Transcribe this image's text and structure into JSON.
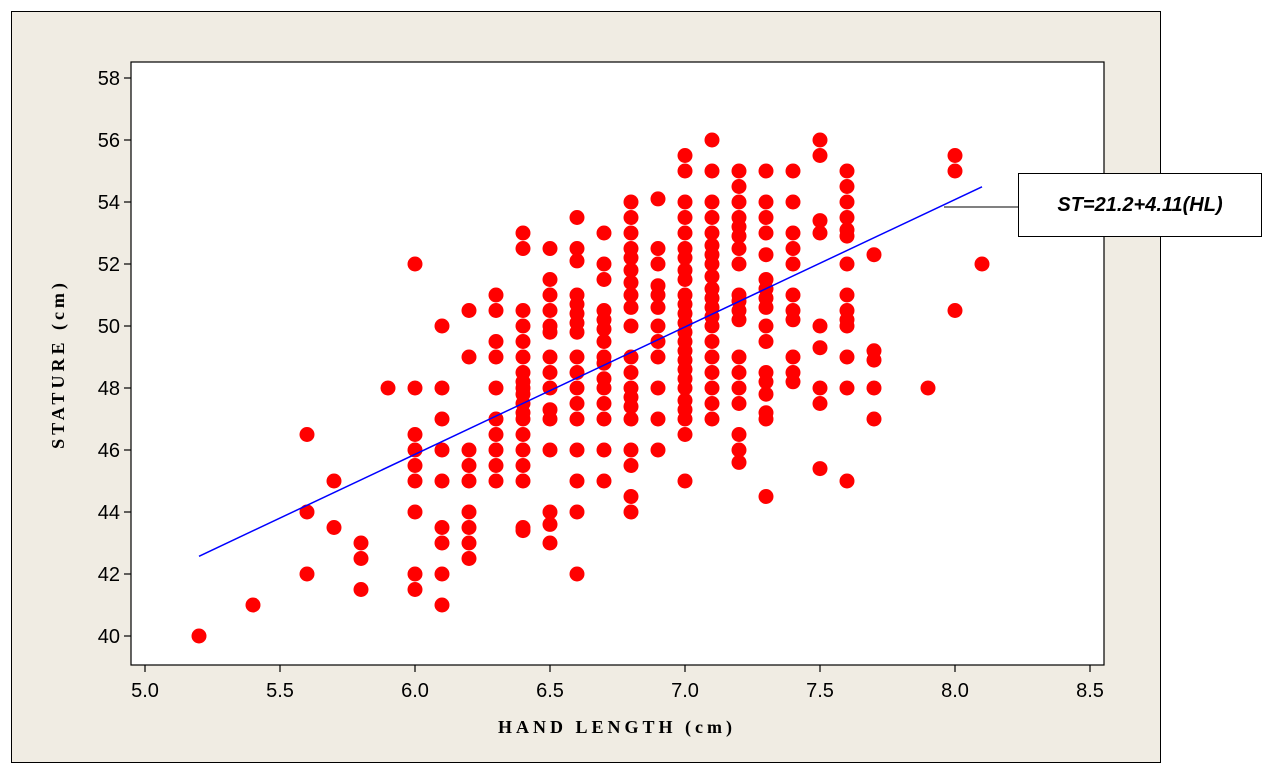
{
  "chart_data": {
    "type": "scatter",
    "title": "",
    "xlabel": "HAND LENGTH (cm)",
    "ylabel": "STATURE (cm)",
    "xlim": [
      5.0,
      8.5
    ],
    "ylim": [
      40,
      58
    ],
    "x_ticks": [
      "5.0",
      "5.5",
      "6.0",
      "6.5",
      "7.0",
      "7.5",
      "8.0",
      "8.5"
    ],
    "y_ticks": [
      "40",
      "42",
      "44",
      "46",
      "48",
      "50",
      "52",
      "54",
      "56",
      "58"
    ],
    "grid": false,
    "legend": "none",
    "point_color": "#ff0000",
    "line_color": "#0000ff",
    "frame_background": "#f0ece3",
    "annotation": "ST=21.2+4.11(HL)",
    "regression": {
      "intercept": 21.2,
      "slope": 4.11,
      "x_range": [
        5.2,
        8.1
      ]
    },
    "points": [
      [
        5.2,
        40
      ],
      [
        5.4,
        41
      ],
      [
        5.6,
        46.5
      ],
      [
        5.6,
        44
      ],
      [
        5.6,
        42
      ],
      [
        5.7,
        45
      ],
      [
        5.7,
        43.5
      ],
      [
        5.8,
        43
      ],
      [
        5.8,
        42.5
      ],
      [
        5.8,
        41.5
      ],
      [
        5.9,
        48
      ],
      [
        6.0,
        52
      ],
      [
        6.0,
        48
      ],
      [
        6.0,
        46.5
      ],
      [
        6.0,
        46
      ],
      [
        6.0,
        45.5
      ],
      [
        6.0,
        45
      ],
      [
        6.0,
        44
      ],
      [
        6.0,
        42
      ],
      [
        6.0,
        41.5
      ],
      [
        6.1,
        50
      ],
      [
        6.1,
        48
      ],
      [
        6.1,
        47
      ],
      [
        6.1,
        46
      ],
      [
        6.1,
        45
      ],
      [
        6.1,
        43.5
      ],
      [
        6.1,
        43
      ],
      [
        6.1,
        42
      ],
      [
        6.1,
        41
      ],
      [
        6.2,
        50.5
      ],
      [
        6.2,
        49
      ],
      [
        6.2,
        46
      ],
      [
        6.2,
        45.5
      ],
      [
        6.2,
        45
      ],
      [
        6.2,
        44
      ],
      [
        6.2,
        43.5
      ],
      [
        6.2,
        43
      ],
      [
        6.2,
        42.5
      ],
      [
        6.3,
        51
      ],
      [
        6.3,
        50.5
      ],
      [
        6.3,
        49.5
      ],
      [
        6.3,
        49
      ],
      [
        6.3,
        48
      ],
      [
        6.3,
        47
      ],
      [
        6.3,
        46.5
      ],
      [
        6.3,
        46
      ],
      [
        6.3,
        45.5
      ],
      [
        6.3,
        45
      ],
      [
        6.4,
        53
      ],
      [
        6.4,
        52.5
      ],
      [
        6.4,
        50.5
      ],
      [
        6.4,
        50
      ],
      [
        6.4,
        49.5
      ],
      [
        6.4,
        49
      ],
      [
        6.4,
        48.5
      ],
      [
        6.4,
        48.2
      ],
      [
        6.4,
        48
      ],
      [
        6.4,
        47.8
      ],
      [
        6.4,
        47.5
      ],
      [
        6.4,
        47.2
      ],
      [
        6.4,
        47
      ],
      [
        6.4,
        46.5
      ],
      [
        6.4,
        46
      ],
      [
        6.4,
        45.5
      ],
      [
        6.4,
        45
      ],
      [
        6.4,
        43.5
      ],
      [
        6.4,
        43.4
      ],
      [
        6.5,
        52.5
      ],
      [
        6.5,
        51.5
      ],
      [
        6.5,
        51
      ],
      [
        6.5,
        50.5
      ],
      [
        6.5,
        50
      ],
      [
        6.5,
        49.8
      ],
      [
        6.5,
        49
      ],
      [
        6.5,
        48.5
      ],
      [
        6.5,
        48
      ],
      [
        6.5,
        47.3
      ],
      [
        6.5,
        47
      ],
      [
        6.5,
        46
      ],
      [
        6.5,
        44
      ],
      [
        6.5,
        43.6
      ],
      [
        6.5,
        43
      ],
      [
        6.6,
        53.5
      ],
      [
        6.6,
        52.5
      ],
      [
        6.6,
        52.1
      ],
      [
        6.6,
        51
      ],
      [
        6.6,
        50.7
      ],
      [
        6.6,
        50.4
      ],
      [
        6.6,
        50.1
      ],
      [
        6.6,
        49.8
      ],
      [
        6.6,
        49
      ],
      [
        6.6,
        48.5
      ],
      [
        6.6,
        48
      ],
      [
        6.6,
        47.5
      ],
      [
        6.6,
        47
      ],
      [
        6.6,
        46
      ],
      [
        6.6,
        45
      ],
      [
        6.6,
        44
      ],
      [
        6.6,
        42
      ],
      [
        6.7,
        53
      ],
      [
        6.7,
        52
      ],
      [
        6.7,
        51.5
      ],
      [
        6.7,
        50.5
      ],
      [
        6.7,
        50.2
      ],
      [
        6.7,
        49.9
      ],
      [
        6.7,
        49.5
      ],
      [
        6.7,
        49
      ],
      [
        6.7,
        48.8
      ],
      [
        6.7,
        48.3
      ],
      [
        6.7,
        48
      ],
      [
        6.7,
        47.5
      ],
      [
        6.7,
        47
      ],
      [
        6.7,
        46
      ],
      [
        6.7,
        45
      ],
      [
        6.8,
        54
      ],
      [
        6.8,
        53.5
      ],
      [
        6.8,
        53
      ],
      [
        6.8,
        52.5
      ],
      [
        6.8,
        52.2
      ],
      [
        6.8,
        51.8
      ],
      [
        6.8,
        51.4
      ],
      [
        6.8,
        51
      ],
      [
        6.8,
        50.6
      ],
      [
        6.8,
        50
      ],
      [
        6.8,
        49
      ],
      [
        6.8,
        48.5
      ],
      [
        6.8,
        48
      ],
      [
        6.8,
        47.7
      ],
      [
        6.8,
        47.4
      ],
      [
        6.8,
        47
      ],
      [
        6.8,
        46
      ],
      [
        6.8,
        45.5
      ],
      [
        6.8,
        44.5
      ],
      [
        6.8,
        44
      ],
      [
        6.9,
        54.1
      ],
      [
        6.9,
        52.5
      ],
      [
        6.9,
        52
      ],
      [
        6.9,
        51.3
      ],
      [
        6.9,
        51
      ],
      [
        6.9,
        50.6
      ],
      [
        6.9,
        50
      ],
      [
        6.9,
        49.5
      ],
      [
        6.9,
        49
      ],
      [
        6.9,
        48
      ],
      [
        6.9,
        47
      ],
      [
        6.9,
        46
      ],
      [
        7.0,
        55.5
      ],
      [
        7.0,
        55
      ],
      [
        7.0,
        54
      ],
      [
        7.0,
        53.5
      ],
      [
        7.0,
        53
      ],
      [
        7.0,
        52.5
      ],
      [
        7.0,
        52.2
      ],
      [
        7.0,
        51.8
      ],
      [
        7.0,
        51.5
      ],
      [
        7.0,
        51
      ],
      [
        7.0,
        50.7
      ],
      [
        7.0,
        50.4
      ],
      [
        7.0,
        50.1
      ],
      [
        7.0,
        49.8
      ],
      [
        7.0,
        49.5
      ],
      [
        7.0,
        49.2
      ],
      [
        7.0,
        48.9
      ],
      [
        7.0,
        48.6
      ],
      [
        7.0,
        48.3
      ],
      [
        7.0,
        48
      ],
      [
        7.0,
        47.6
      ],
      [
        7.0,
        47.3
      ],
      [
        7.0,
        47
      ],
      [
        7.0,
        46.5
      ],
      [
        7.0,
        45
      ],
      [
        7.1,
        56
      ],
      [
        7.1,
        55
      ],
      [
        7.1,
        54
      ],
      [
        7.1,
        53.5
      ],
      [
        7.1,
        53
      ],
      [
        7.1,
        52.6
      ],
      [
        7.1,
        52.3
      ],
      [
        7.1,
        52
      ],
      [
        7.1,
        51.6
      ],
      [
        7.1,
        51.2
      ],
      [
        7.1,
        50.9
      ],
      [
        7.1,
        50.6
      ],
      [
        7.1,
        50.3
      ],
      [
        7.1,
        50
      ],
      [
        7.1,
        49.5
      ],
      [
        7.1,
        49
      ],
      [
        7.1,
        48.5
      ],
      [
        7.1,
        48
      ],
      [
        7.1,
        47.5
      ],
      [
        7.1,
        47
      ],
      [
        7.2,
        55
      ],
      [
        7.2,
        54.5
      ],
      [
        7.2,
        54
      ],
      [
        7.2,
        53.5
      ],
      [
        7.2,
        53.2
      ],
      [
        7.2,
        52.9
      ],
      [
        7.2,
        52.5
      ],
      [
        7.2,
        52
      ],
      [
        7.2,
        51
      ],
      [
        7.2,
        50.8
      ],
      [
        7.2,
        50.5
      ],
      [
        7.2,
        50.2
      ],
      [
        7.2,
        49
      ],
      [
        7.2,
        48.5
      ],
      [
        7.2,
        48
      ],
      [
        7.2,
        47.5
      ],
      [
        7.2,
        46.5
      ],
      [
        7.2,
        46
      ],
      [
        7.2,
        45.6
      ],
      [
        7.3,
        55
      ],
      [
        7.3,
        54
      ],
      [
        7.3,
        53.5
      ],
      [
        7.3,
        53
      ],
      [
        7.3,
        52.3
      ],
      [
        7.3,
        51.5
      ],
      [
        7.3,
        51.2
      ],
      [
        7.3,
        50.9
      ],
      [
        7.3,
        50.6
      ],
      [
        7.3,
        50
      ],
      [
        7.3,
        49.5
      ],
      [
        7.3,
        48.5
      ],
      [
        7.3,
        48.2
      ],
      [
        7.3,
        47.8
      ],
      [
        7.3,
        47.2
      ],
      [
        7.3,
        47
      ],
      [
        7.3,
        44.5
      ],
      [
        7.4,
        55
      ],
      [
        7.4,
        54
      ],
      [
        7.4,
        53
      ],
      [
        7.4,
        52.5
      ],
      [
        7.4,
        52
      ],
      [
        7.4,
        51
      ],
      [
        7.4,
        50.5
      ],
      [
        7.4,
        50.2
      ],
      [
        7.4,
        49
      ],
      [
        7.4,
        48.5
      ],
      [
        7.4,
        48.2
      ],
      [
        7.5,
        56
      ],
      [
        7.5,
        55.5
      ],
      [
        7.5,
        53.4
      ],
      [
        7.5,
        53
      ],
      [
        7.5,
        50
      ],
      [
        7.5,
        49.3
      ],
      [
        7.5,
        48
      ],
      [
        7.5,
        47.5
      ],
      [
        7.5,
        45.4
      ],
      [
        7.6,
        55
      ],
      [
        7.6,
        54.5
      ],
      [
        7.6,
        54
      ],
      [
        7.6,
        53.5
      ],
      [
        7.6,
        53.1
      ],
      [
        7.6,
        52.9
      ],
      [
        7.6,
        52
      ],
      [
        7.6,
        51
      ],
      [
        7.6,
        50.5
      ],
      [
        7.6,
        50.2
      ],
      [
        7.6,
        50
      ],
      [
        7.6,
        49
      ],
      [
        7.6,
        48
      ],
      [
        7.6,
        45
      ],
      [
        7.7,
        52.3
      ],
      [
        7.7,
        49.2
      ],
      [
        7.7,
        48.9
      ],
      [
        7.7,
        48
      ],
      [
        7.7,
        47
      ],
      [
        7.9,
        48
      ],
      [
        8.0,
        55.5
      ],
      [
        8.0,
        55
      ],
      [
        8.0,
        50.5
      ],
      [
        8.1,
        52
      ]
    ]
  }
}
